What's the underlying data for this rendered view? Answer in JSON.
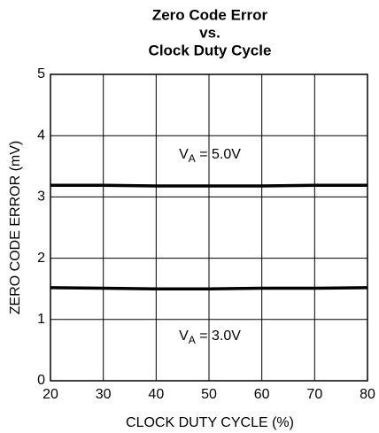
{
  "chart_data": {
    "type": "line",
    "title": [
      "Zero Code Error",
      "vs.",
      "Clock Duty Cycle"
    ],
    "x_label": "CLOCK DUTY CYCLE (%)",
    "y_label": "ZERO CODE ERROR (mV)",
    "x": [
      20,
      30,
      40,
      50,
      60,
      70,
      80
    ],
    "series": [
      {
        "color": "#000000",
        "values": [
          3.19,
          3.19,
          3.18,
          3.18,
          3.18,
          3.19,
          3.19
        ]
      },
      {
        "color": "#000000",
        "values": [
          1.52,
          1.51,
          1.5,
          1.5,
          1.51,
          1.51,
          1.52
        ]
      }
    ],
    "annotations": [
      {
        "main": "V",
        "sub": "A",
        "tail": " = 5.0V"
      },
      {
        "main": "V",
        "sub": "A",
        "tail": " = 3.0V"
      }
    ],
    "xlim": [
      20,
      80
    ],
    "xticks": [
      20,
      30,
      40,
      50,
      60,
      70,
      80
    ],
    "ylim": [
      0,
      5
    ],
    "yticks": [
      0,
      1,
      2,
      3,
      4,
      5
    ],
    "grid": true
  }
}
